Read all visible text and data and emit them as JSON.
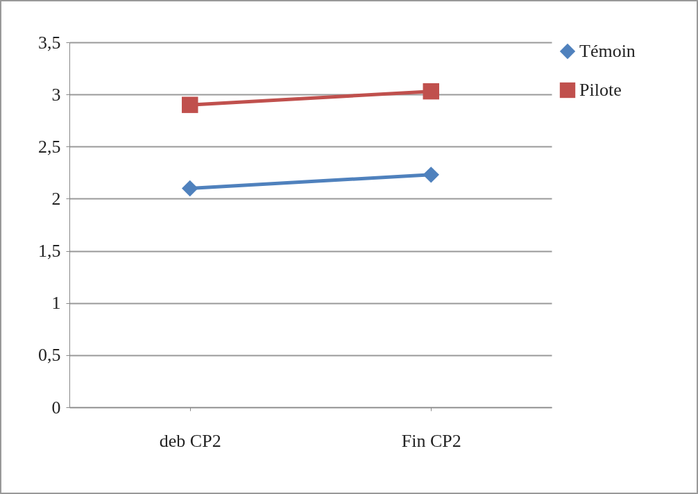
{
  "chart_data": {
    "type": "line",
    "categories": [
      "deb CP2",
      "Fin CP2"
    ],
    "series": [
      {
        "name": "Témoin",
        "color": "#4f81bd",
        "marker": "diamond",
        "values": [
          2.1,
          2.23
        ]
      },
      {
        "name": "Pilote",
        "color": "#c0504d",
        "marker": "square",
        "values": [
          2.9,
          3.03
        ]
      }
    ],
    "ylim": [
      0,
      3.5
    ],
    "yticks": [
      0,
      {
        "value": 0.5,
        "label": "0,5"
      },
      1,
      {
        "value": 1.5,
        "label": "1,5"
      },
      2,
      {
        "value": 2.5,
        "label": "2,5"
      },
      3,
      {
        "value": 3.5,
        "label": "3,5"
      }
    ],
    "grid": "y",
    "legend": "right"
  }
}
